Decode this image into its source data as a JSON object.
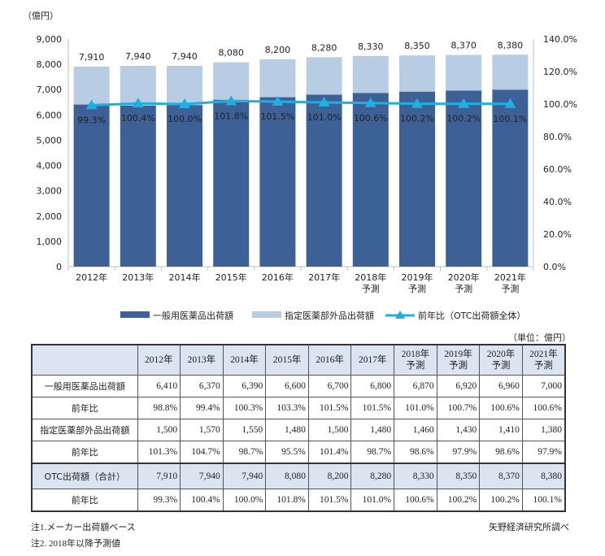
{
  "chart_data": {
    "type": "bar",
    "stacked": true,
    "y_unit": "（億円）",
    "ylim": [
      0,
      9000
    ],
    "y_ticks": [
      "0",
      "1,000",
      "2,000",
      "3,000",
      "4,000",
      "5,000",
      "6,000",
      "7,000",
      "8,000",
      "9,000"
    ],
    "y2lim": [
      0,
      140
    ],
    "y2_ticks": [
      "0.0%",
      "20.0%",
      "40.0%",
      "60.0%",
      "80.0%",
      "100.0%",
      "120.0%",
      "140.0%"
    ],
    "categories": [
      [
        "2012年"
      ],
      [
        "2013年"
      ],
      [
        "2014年"
      ],
      [
        "2015年"
      ],
      [
        "2016年"
      ],
      [
        "2017年"
      ],
      [
        "2018年",
        "予測"
      ],
      [
        "2019年",
        "予測"
      ],
      [
        "2020年",
        "予測"
      ],
      [
        "2021年",
        "予測"
      ]
    ],
    "series": [
      {
        "name": "一般用医薬品出荷額",
        "color": "#3d6196",
        "values": [
          6410,
          6370,
          6390,
          6600,
          6700,
          6800,
          6870,
          6920,
          6960,
          7000
        ]
      },
      {
        "name": "指定医薬部外品出荷額",
        "color": "#b8cce4",
        "values": [
          1500,
          1570,
          1550,
          1480,
          1500,
          1480,
          1460,
          1430,
          1410,
          1380
        ]
      }
    ],
    "totals": [
      "7,910",
      "7,940",
      "7,940",
      "8,080",
      "8,200",
      "8,280",
      "8,330",
      "8,350",
      "8,370",
      "8,380"
    ],
    "line": {
      "name": "前年比（OTC出荷額全体）",
      "color": "#1fb0e0",
      "values": [
        99.3,
        100.4,
        100.0,
        101.8,
        101.5,
        101.0,
        100.6,
        100.2,
        100.2,
        100.1
      ],
      "labels": [
        "99.3%",
        "100.4%",
        "100.0%",
        "101.8%",
        "101.5%",
        "101.0%",
        "100.6%",
        "100.2%",
        "100.2%",
        "100.1%"
      ]
    }
  },
  "table": {
    "unit": "（単位：億円）",
    "headers": [
      [
        "2012年"
      ],
      [
        "2013年"
      ],
      [
        "2014年"
      ],
      [
        "2015年"
      ],
      [
        "2016年"
      ],
      [
        "2017年"
      ],
      [
        "2018年",
        "予測"
      ],
      [
        "2019年",
        "予測"
      ],
      [
        "2020年",
        "予測"
      ],
      [
        "2021年",
        "予測"
      ]
    ],
    "rows": [
      {
        "label": "一般用医薬品出荷額",
        "values": [
          "6,410",
          "6,370",
          "6,390",
          "6,600",
          "6,700",
          "6,800",
          "6,870",
          "6,920",
          "6,960",
          "7,000"
        ]
      },
      {
        "label": "前年比",
        "values": [
          "98.8%",
          "99.4%",
          "100.3%",
          "103.3%",
          "101.5%",
          "101.5%",
          "101.0%",
          "100.7%",
          "100.6%",
          "100.6%"
        ]
      },
      {
        "label": "指定医薬部外品出荷額",
        "values": [
          "1,500",
          "1,570",
          "1,550",
          "1,480",
          "1,500",
          "1,480",
          "1,460",
          "1,430",
          "1,410",
          "1,380"
        ]
      },
      {
        "label": "前年比",
        "values": [
          "101.3%",
          "104.7%",
          "98.7%",
          "95.5%",
          "101.4%",
          "98.7%",
          "98.6%",
          "97.9%",
          "98.6%",
          "97.9%"
        ]
      },
      {
        "label": "OTC出荷額（合計）",
        "values": [
          "7,910",
          "7,940",
          "7,940",
          "8,080",
          "8,200",
          "8,280",
          "8,330",
          "8,350",
          "8,370",
          "8,380"
        ],
        "highlight": true
      },
      {
        "label": "前年比",
        "values": [
          "99.3%",
          "100.4%",
          "100.0%",
          "101.8%",
          "101.5%",
          "101.0%",
          "100.6%",
          "100.2%",
          "100.2%",
          "100.1%"
        ]
      }
    ]
  },
  "notes": [
    "注1.メーカー出荷額ベース",
    "注2. 2018年以降予測値"
  ],
  "source": "矢野経済研究所調べ"
}
